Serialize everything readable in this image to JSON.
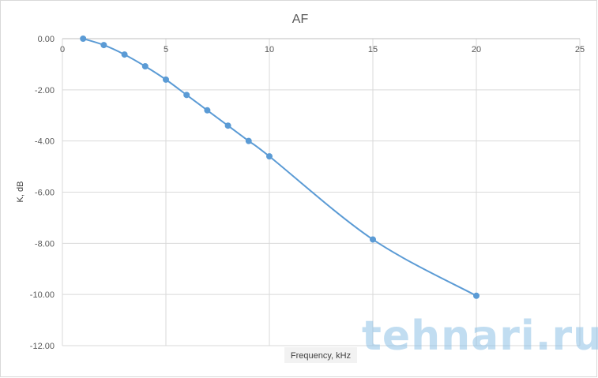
{
  "chart_data": {
    "type": "line",
    "title": "AF",
    "xlabel": "Frequency, kHz",
    "ylabel": "K, dB",
    "xlim": [
      0,
      25
    ],
    "ylim": [
      -12,
      0
    ],
    "x_ticks": [
      0,
      5,
      10,
      15,
      20,
      25
    ],
    "y_ticks": [
      0,
      -2,
      -4,
      -6,
      -8,
      -10,
      -12
    ],
    "x_tick_labels": [
      "0",
      "5",
      "10",
      "15",
      "20",
      "25"
    ],
    "y_tick_labels": [
      "0.00",
      "-2.00",
      "-4.00",
      "-6.00",
      "-8.00",
      "-10.00",
      "-12.00"
    ],
    "grid": true,
    "series": [
      {
        "x": [
          1,
          2,
          3,
          4,
          5,
          6,
          7,
          8,
          9,
          10,
          15,
          20
        ],
        "y": [
          0.0,
          -0.25,
          -0.62,
          -1.08,
          -1.6,
          -2.2,
          -2.8,
          -3.4,
          -4.0,
          -4.6,
          -7.85,
          -10.05
        ],
        "color": "#5b9bd5"
      }
    ]
  },
  "watermark": {
    "text": "tehnari.ru"
  },
  "colors": {
    "series": "#5b9bd5",
    "grid": "#d9d9d9",
    "axis": "#bfbfbf"
  }
}
